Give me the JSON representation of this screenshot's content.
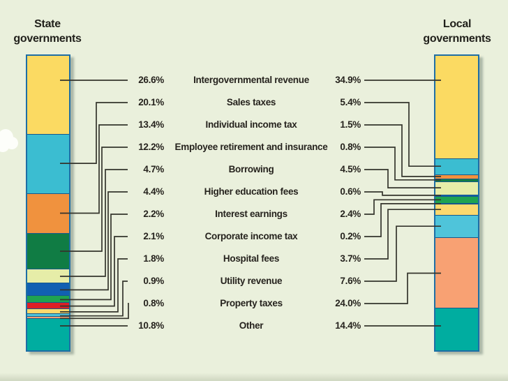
{
  "header": {
    "state": {
      "line1": "State",
      "line2": "governments"
    },
    "local": {
      "line1": "Local",
      "line2": "governments"
    }
  },
  "chart_data": {
    "type": "bar",
    "subtype": "paired-100-percent-stacked-bars",
    "unit": "%",
    "categories": [
      "Intergovernmental revenue",
      "Sales taxes",
      "Individual income tax",
      "Employee retirement and insurance",
      "Borrowing",
      "Higher education fees",
      "Interest earnings",
      "Corporate income tax",
      "Hospital fees",
      "Utility revenue",
      "Property taxes",
      "Other"
    ],
    "series": [
      {
        "name": "State governments",
        "values": [
          26.6,
          20.1,
          13.4,
          12.2,
          4.7,
          4.4,
          2.2,
          2.1,
          1.8,
          0.9,
          0.8,
          10.8
        ]
      },
      {
        "name": "Local governments",
        "values": [
          34.9,
          5.4,
          1.5,
          0.8,
          4.5,
          0.6,
          2.4,
          0.2,
          3.7,
          7.6,
          24.0,
          14.4
        ]
      }
    ],
    "colors": [
      "#FBDA62",
      "#3BBDD1",
      "#F0923E",
      "#107C44",
      "#E6EDA8",
      "#1160B2",
      "#1FA351",
      "#DC1F26",
      "#FCD96E",
      "#4FC4DA",
      "#F8A173",
      "#00ADA0"
    ],
    "background": "#EAF0DC",
    "bar_border_color": "#1E6EA5",
    "connector_color": "#34342C",
    "legend_position": "center-list",
    "value_label_format": "0.0%"
  }
}
